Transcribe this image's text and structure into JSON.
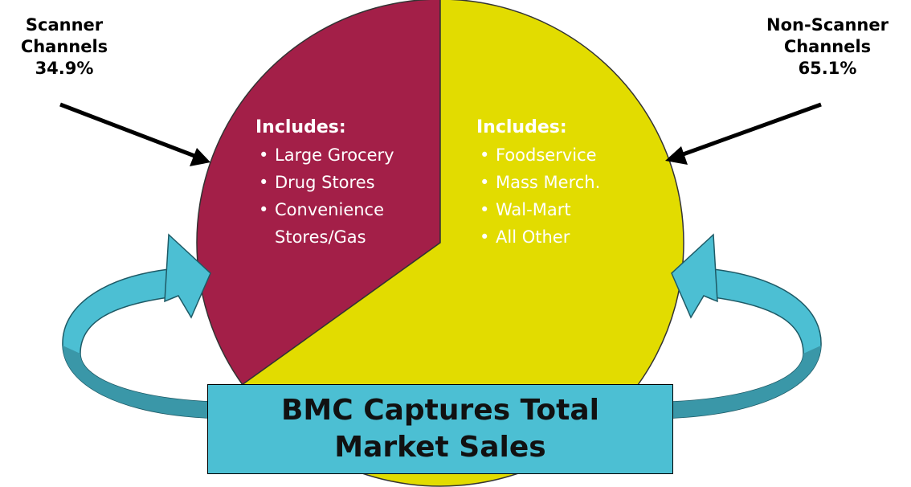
{
  "chart_data": {
    "type": "pie",
    "categories": [
      "Scanner Channels",
      "Non-Scanner Channels"
    ],
    "values": [
      34.9,
      65.1
    ],
    "value_labels": [
      "34.9%",
      "65.1%"
    ],
    "colors": [
      "#a31f48",
      "#e2dc00"
    ],
    "includes": [
      {
        "heading": "Includes:",
        "items": [
          "Large Grocery",
          "Drug Stores",
          "Convenience Stores/Gas"
        ]
      },
      {
        "heading": "Includes:",
        "items": [
          "Foodservice",
          "Mass Merch.",
          "Wal-Mart",
          "All Other"
        ]
      }
    ],
    "banner": "BMC Captures Total Market Sales"
  }
}
